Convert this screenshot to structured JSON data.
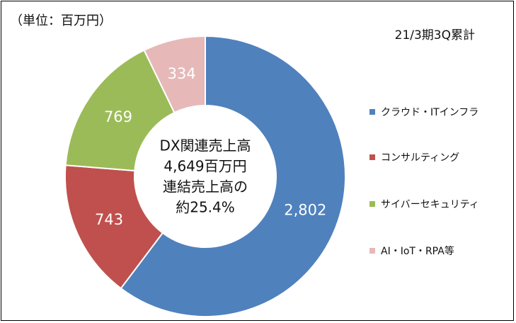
{
  "unit_label": "（単位：百万円）",
  "period_label": "21/3期3Q累計",
  "center_text": [
    "DX関連売上高",
    "4,649百万円",
    "連結売上高の",
    "約25.4%"
  ],
  "colors": {
    "cloud": "#4F81BD",
    "consulting": "#C0504D",
    "security": "#9BBB59",
    "ai": "#E6B9B8"
  },
  "chart_data": {
    "type": "pie",
    "donut": true,
    "categories": [
      "クラウド・ITインフラ",
      "コンサルティング",
      "サイバーセキュリティ",
      "AI・IoT・RPA等"
    ],
    "values": [
      2802,
      743,
      769,
      334
    ],
    "value_labels": [
      "2,802",
      "743",
      "769",
      "334"
    ],
    "legend_position": "right"
  }
}
